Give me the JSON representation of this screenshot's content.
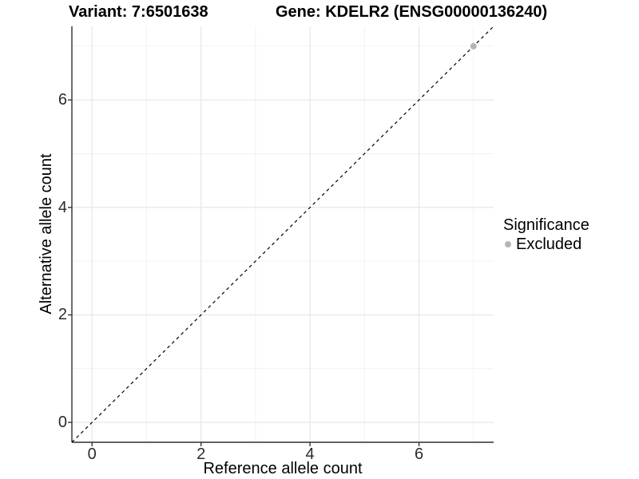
{
  "titles": {
    "variant": "Variant: 7:6501638",
    "gene": "Gene: KDELR2 (ENSG00000136240)"
  },
  "chart_data": {
    "type": "scatter",
    "title": "Variant: 7:6501638    Gene: KDELR2 (ENSG00000136240)",
    "xlabel": "Reference allele count",
    "ylabel": "Alternative allele count",
    "xlim": [
      -0.37,
      7.37
    ],
    "ylim": [
      -0.37,
      7.37
    ],
    "x_ticks": [
      0,
      2,
      4,
      6
    ],
    "y_ticks": [
      0,
      2,
      4,
      6
    ],
    "x_minor_ticks": [
      1,
      3,
      5,
      7
    ],
    "y_minor_ticks": [
      1,
      3,
      5,
      7
    ],
    "grid": "major+minor",
    "reference_line": {
      "kind": "identity",
      "slope": 1,
      "intercept": 0,
      "linestyle": "dashed",
      "color": "#000000"
    },
    "series": [
      {
        "name": "Excluded",
        "color": "#b5b5b5",
        "points": [
          [
            7,
            7
          ]
        ]
      }
    ],
    "legend": {
      "title": "Significance",
      "position": "right",
      "entries": [
        {
          "label": "Excluded",
          "color": "#b5b5b5",
          "marker": "circle"
        }
      ]
    },
    "style": {
      "panel_bg": "#ffffff",
      "grid_major": "#e5e5e5",
      "grid_minor": "#f2f2f2",
      "axis_line": "#2f2f2f",
      "tick_color": "#333333",
      "tick_label_color": "#2b2b2b",
      "title_color": "#000000"
    }
  }
}
